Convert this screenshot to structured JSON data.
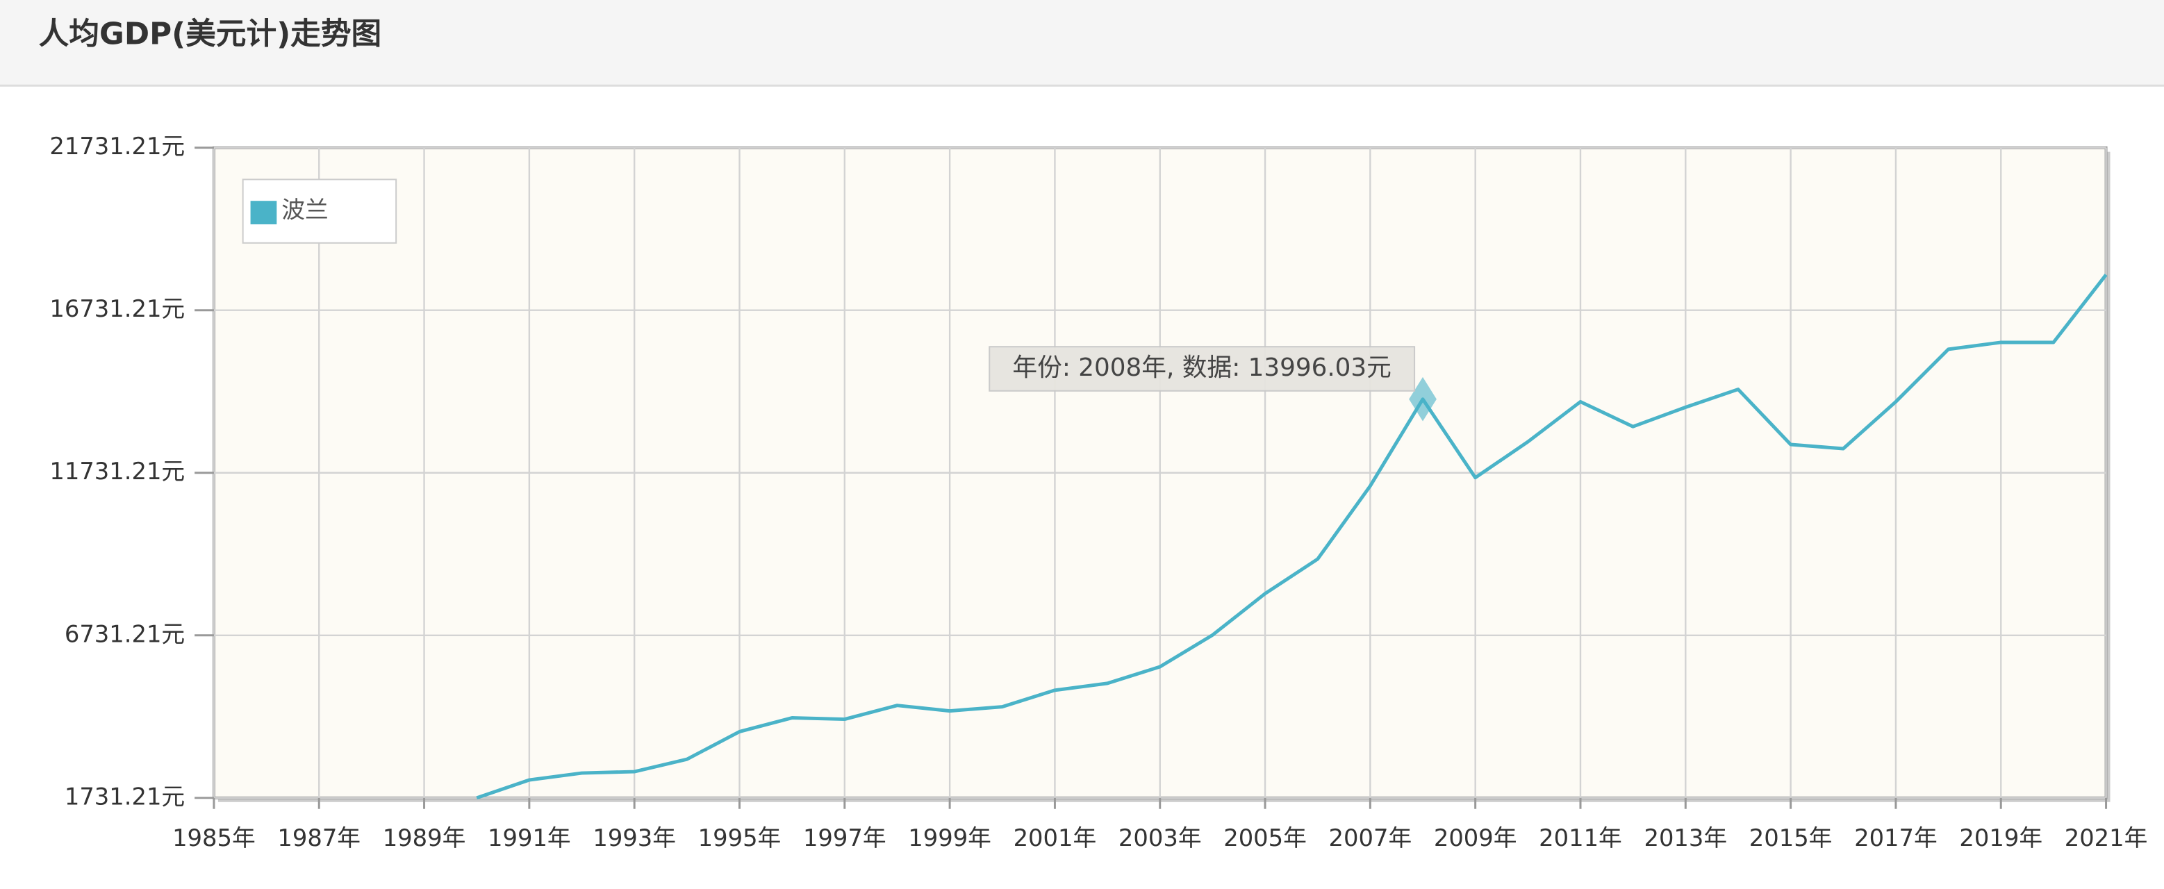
{
  "chart_data": {
    "type": "line",
    "title": "人均GDP(美元计)走势图",
    "x": [
      1985,
      1986,
      1987,
      1988,
      1989,
      1990,
      1991,
      1992,
      1993,
      1994,
      1995,
      1996,
      1997,
      1998,
      1999,
      2000,
      2001,
      2002,
      2003,
      2004,
      2005,
      2006,
      2007,
      2008,
      2009,
      2010,
      2011,
      2012,
      2013,
      2014,
      2015,
      2016,
      2017,
      2018,
      2019,
      2020,
      2021
    ],
    "series": [
      {
        "name": "波兰",
        "color": "#4ab3c8",
        "values": [
          null,
          null,
          null,
          null,
          null,
          1731.21,
          2283,
          2495,
          2538,
          2920,
          3769,
          4194,
          4151,
          4576,
          4406,
          4534,
          5043,
          5255,
          5765,
          6741,
          8015,
          9077,
          11327,
          13996.03,
          11582,
          12686,
          13917,
          13153,
          13747,
          14299,
          12601,
          12473,
          13917,
          15531,
          15743,
          15743,
          17824
        ]
      }
    ],
    "xlim": [
      1985,
      2021
    ],
    "xticks": [
      {
        "value": 1985,
        "label": "1985年"
      },
      {
        "value": 1987,
        "label": "1987年"
      },
      {
        "value": 1989,
        "label": "1989年"
      },
      {
        "value": 1991,
        "label": "1991年"
      },
      {
        "value": 1993,
        "label": "1993年"
      },
      {
        "value": 1995,
        "label": "1995年"
      },
      {
        "value": 1997,
        "label": "1997年"
      },
      {
        "value": 1999,
        "label": "1999年"
      },
      {
        "value": 2001,
        "label": "2001年"
      },
      {
        "value": 2003,
        "label": "2003年"
      },
      {
        "value": 2005,
        "label": "2005年"
      },
      {
        "value": 2007,
        "label": "2007年"
      },
      {
        "value": 2009,
        "label": "2009年"
      },
      {
        "value": 2011,
        "label": "2011年"
      },
      {
        "value": 2013,
        "label": "2013年"
      },
      {
        "value": 2015,
        "label": "2015年"
      },
      {
        "value": 2017,
        "label": "2017年"
      },
      {
        "value": 2019,
        "label": "2019年"
      },
      {
        "value": 2021,
        "label": "2021年"
      }
    ],
    "ylim": [
      1731.21,
      21731.21
    ],
    "yticks": [
      {
        "value": 1731.21,
        "label": "1731.21元"
      },
      {
        "value": 6731.21,
        "label": "6731.21元"
      },
      {
        "value": 11731.21,
        "label": "11731.21元"
      },
      {
        "value": 16731.21,
        "label": "16731.21元"
      },
      {
        "value": 21731.21,
        "label": "21731.21元"
      }
    ],
    "grid": true,
    "legend": "top-left",
    "tooltip": {
      "text": "年份: 2008年, 数据: 13996.03元",
      "x": 2008
    }
  }
}
